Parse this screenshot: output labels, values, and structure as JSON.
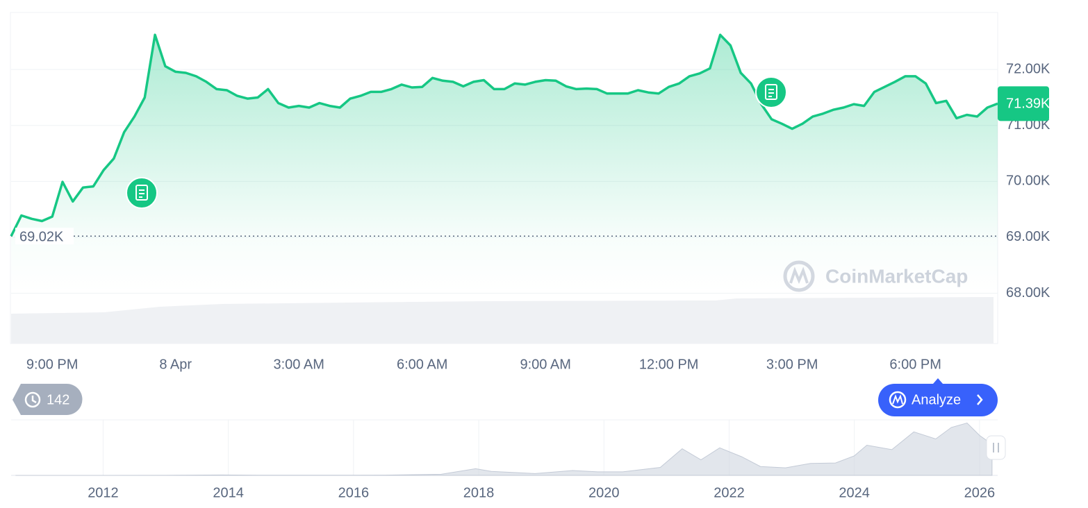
{
  "chart_data": [
    {
      "type": "line",
      "color": "#16c784",
      "grid": true,
      "categories": [
        null,
        null,
        null,
        null,
        "9:00 PM",
        null,
        null,
        null,
        null,
        null,
        null,
        null,
        null,
        null,
        null,
        null,
        "8 Apr",
        null,
        null,
        null,
        null,
        null,
        null,
        null,
        null,
        null,
        null,
        null,
        "3:00 AM",
        null,
        null,
        null,
        null,
        null,
        null,
        null,
        null,
        null,
        null,
        null,
        "6:00 AM",
        null,
        null,
        null,
        null,
        null,
        null,
        null,
        null,
        null,
        null,
        null,
        "9:00 AM",
        null,
        null,
        null,
        null,
        null,
        null,
        null,
        null,
        null,
        null,
        null,
        "12:00 PM",
        null,
        null,
        null,
        null,
        null,
        null,
        null,
        null,
        null,
        null,
        null,
        "3:00 PM",
        null,
        null,
        null,
        null,
        null,
        null,
        null,
        null,
        null,
        null,
        null,
        "6:00 PM",
        null,
        null,
        null,
        null,
        null,
        null,
        null,
        null
      ],
      "values": [
        69020,
        69390,
        69330,
        69290,
        69370,
        69990,
        69640,
        69890,
        69910,
        70200,
        70410,
        70880,
        71160,
        71500,
        72620,
        72060,
        71960,
        71940,
        71880,
        71780,
        71650,
        71630,
        71530,
        71480,
        71500,
        71650,
        71400,
        71320,
        71350,
        71320,
        71400,
        71350,
        71320,
        71480,
        71530,
        71600,
        71600,
        71650,
        71730,
        71680,
        71690,
        71850,
        71800,
        71780,
        71700,
        71780,
        71810,
        71650,
        71650,
        71750,
        71730,
        71780,
        71810,
        71800,
        71700,
        71650,
        71660,
        71650,
        71570,
        71570,
        71570,
        71630,
        71590,
        71570,
        71690,
        71750,
        71880,
        71930,
        72020,
        72620,
        72430,
        71940,
        71750,
        71380,
        71110,
        71030,
        70940,
        71030,
        71160,
        71210,
        71280,
        71320,
        71380,
        71350,
        71600,
        71690,
        71780,
        71880,
        71880,
        71750,
        71400,
        71440,
        71130,
        71190,
        71160,
        71320,
        71390
      ],
      "ylim": [
        67100,
        73020
      ],
      "yticks": [
        {
          "value": 68000,
          "label": "68.00K"
        },
        {
          "value": 69000,
          "label": "69.00K"
        },
        {
          "value": 70000,
          "label": "70.00K"
        },
        {
          "value": 71000,
          "label": "71.00K"
        },
        {
          "value": 72000,
          "label": "72.00K"
        }
      ],
      "low": {
        "value": 69020,
        "label": "69.02K"
      },
      "last": {
        "value": 71390,
        "label": "71.39K"
      }
    },
    {
      "type": "area",
      "color": "#cfd6e0",
      "x": [
        2010.6,
        2012,
        2013,
        2013.9,
        2014.5,
        2015.5,
        2016.5,
        2017.4,
        2017.95,
        2018.2,
        2018.9,
        2019.5,
        2019.9,
        2020.3,
        2020.9,
        2021.25,
        2021.55,
        2021.85,
        2022.2,
        2022.5,
        2022.9,
        2023.3,
        2023.7,
        2024.0,
        2024.2,
        2024.6,
        2024.95,
        2025.3,
        2025.55,
        2025.8,
        2026.0,
        2026.2
      ],
      "values": [
        0,
        10,
        100,
        900,
        500,
        300,
        600,
        2500,
        15000,
        9000,
        4000,
        11000,
        8000,
        8000,
        18000,
        60000,
        35000,
        62000,
        42000,
        20000,
        17000,
        27000,
        28000,
        44000,
        68000,
        58000,
        98000,
        82000,
        108000,
        118000,
        90000,
        70000
      ],
      "xlim": [
        2010.53,
        2026.29
      ],
      "xticks": [
        2012,
        2014,
        2016,
        2018,
        2020,
        2022,
        2024,
        2026
      ],
      "ylim": [
        0,
        125000
      ]
    }
  ],
  "controls": {
    "history": 142,
    "analyze": "Analyze"
  },
  "watermark": "CoinMarketCap"
}
